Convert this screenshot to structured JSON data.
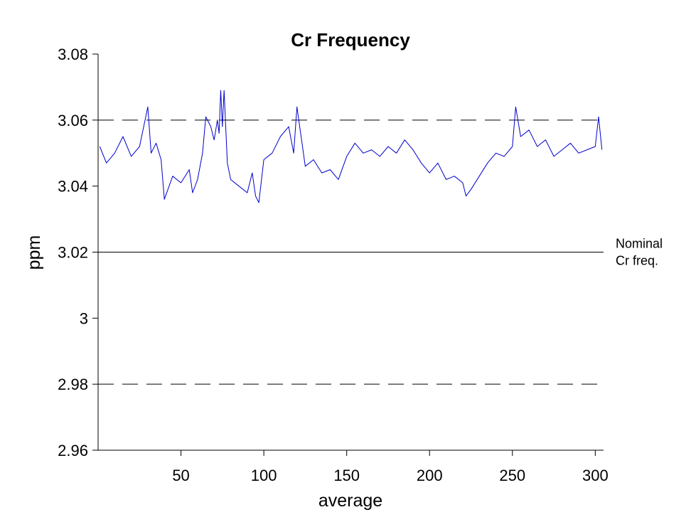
{
  "chart_data": {
    "type": "line",
    "title": "Cr Frequency",
    "xlabel": "average",
    "ylabel": "ppm",
    "xlim": [
      0,
      305
    ],
    "ylim": [
      2.96,
      3.08
    ],
    "xticks": [
      50,
      100,
      150,
      200,
      250,
      300
    ],
    "yticks": [
      3.08,
      3.06,
      3.04,
      3.02,
      3,
      2.98,
      2.96
    ],
    "ytick_labels": [
      "3.08",
      "3.06",
      "3.04",
      "3.02",
      "3",
      "2.98",
      "2.96"
    ],
    "grid": false,
    "colors": {
      "series": "#0000cc",
      "reference": "#000000"
    },
    "reference_lines": [
      {
        "y": 3.06,
        "style": "dashed"
      },
      {
        "y": 3.02,
        "style": "solid",
        "label_lines": [
          "Nominal",
          "Cr freq."
        ]
      },
      {
        "y": 2.98,
        "style": "dashed"
      }
    ],
    "series": [
      {
        "x": [
          1,
          5,
          10,
          15,
          20,
          25,
          30,
          32,
          35,
          38,
          40,
          45,
          50,
          55,
          57,
          60,
          63,
          65,
          68,
          70,
          72,
          73,
          74,
          75,
          76,
          78,
          80,
          85,
          90,
          93,
          95,
          97,
          100,
          105,
          108,
          110,
          115,
          118,
          120,
          125,
          130,
          135,
          140,
          145,
          150,
          155,
          160,
          165,
          170,
          175,
          180,
          185,
          190,
          195,
          200,
          205,
          210,
          215,
          220,
          222,
          225,
          230,
          235,
          240,
          245,
          250,
          252,
          255,
          260,
          265,
          270,
          275,
          280,
          285,
          290,
          295,
          300,
          302,
          304
        ],
        "y": [
          3.052,
          3.047,
          3.05,
          3.055,
          3.049,
          3.052,
          3.064,
          3.05,
          3.053,
          3.048,
          3.036,
          3.043,
          3.041,
          3.045,
          3.038,
          3.042,
          3.05,
          3.061,
          3.058,
          3.054,
          3.06,
          3.056,
          3.069,
          3.058,
          3.069,
          3.047,
          3.042,
          3.04,
          3.038,
          3.044,
          3.037,
          3.035,
          3.048,
          3.05,
          3.053,
          3.055,
          3.058,
          3.05,
          3.064,
          3.046,
          3.048,
          3.044,
          3.045,
          3.042,
          3.049,
          3.053,
          3.05,
          3.051,
          3.049,
          3.052,
          3.05,
          3.054,
          3.051,
          3.047,
          3.044,
          3.047,
          3.042,
          3.043,
          3.041,
          3.037,
          3.039,
          3.043,
          3.047,
          3.05,
          3.049,
          3.052,
          3.064,
          3.055,
          3.057,
          3.052,
          3.054,
          3.049,
          3.051,
          3.053,
          3.05,
          3.051,
          3.052,
          3.061,
          3.051
        ]
      }
    ]
  }
}
